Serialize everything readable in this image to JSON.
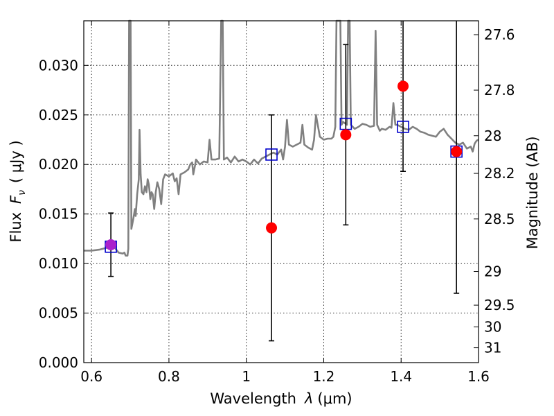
{
  "chart_data": {
    "type": "scatter",
    "title": "",
    "xlabel": "Wavelength",
    "xlabel_symbol": "λ",
    "xlabel_unit": "(μm)",
    "ylabel": "Flux",
    "ylabel_symbol": "F",
    "ylabel_subscript": "ν",
    "ylabel_unit": "( μJy )",
    "y2label": "Magnitude (AB)",
    "xlim": [
      0.58,
      1.6
    ],
    "ylim": [
      0.0,
      0.0345
    ],
    "grid": true,
    "x_ticks": [
      0.6,
      0.8,
      1.0,
      1.2,
      1.4,
      1.6
    ],
    "x_tick_labels": [
      "0.6",
      "0.8",
      "1",
      "1.2",
      "1.4",
      "1.6"
    ],
    "y_ticks": [
      0.0,
      0.005,
      0.01,
      0.015,
      0.02,
      0.025,
      0.03
    ],
    "y_tick_labels": [
      "0.000",
      "0.005",
      "0.010",
      "0.015",
      "0.020",
      "0.025",
      "0.030"
    ],
    "y2_ticks": [
      {
        "label": "27.6",
        "flux": 0.0331
      },
      {
        "label": "27.8",
        "flux": 0.0275
      },
      {
        "label": "28",
        "flux": 0.0229
      },
      {
        "label": "28.2",
        "flux": 0.0191
      },
      {
        "label": "28.5",
        "flux": 0.0145
      },
      {
        "label": "29",
        "flux": 0.0092
      },
      {
        "label": "29.5",
        "flux": 0.0058
      },
      {
        "label": "30",
        "flux": 0.0036
      },
      {
        "label": "31",
        "flux": 0.0015
      }
    ],
    "series": [
      {
        "kind": "line",
        "color": "#808080",
        "points": [
          [
            0.58,
            0.0113
          ],
          [
            0.6,
            0.0113
          ],
          [
            0.62,
            0.0114
          ],
          [
            0.64,
            0.0116
          ],
          [
            0.66,
            0.0116
          ],
          [
            0.67,
            0.0111
          ],
          [
            0.68,
            0.011
          ],
          [
            0.685,
            0.0111
          ],
          [
            0.688,
            0.0108
          ],
          [
            0.693,
            0.0108
          ],
          [
            0.695,
            0.0115
          ],
          [
            0.697,
            0.0345
          ],
          [
            0.701,
            0.0345
          ],
          [
            0.703,
            0.0135
          ],
          [
            0.708,
            0.0145
          ],
          [
            0.712,
            0.0155
          ],
          [
            0.714,
            0.0148
          ],
          [
            0.718,
            0.017
          ],
          [
            0.722,
            0.0185
          ],
          [
            0.724,
            0.0235
          ],
          [
            0.727,
            0.019
          ],
          [
            0.73,
            0.0172
          ],
          [
            0.734,
            0.017
          ],
          [
            0.738,
            0.0178
          ],
          [
            0.742,
            0.0172
          ],
          [
            0.745,
            0.0185
          ],
          [
            0.748,
            0.018
          ],
          [
            0.752,
            0.0165
          ],
          [
            0.755,
            0.0172
          ],
          [
            0.758,
            0.017
          ],
          [
            0.762,
            0.0155
          ],
          [
            0.766,
            0.0172
          ],
          [
            0.77,
            0.0182
          ],
          [
            0.775,
            0.0175
          ],
          [
            0.78,
            0.016
          ],
          [
            0.785,
            0.0185
          ],
          [
            0.79,
            0.019
          ],
          [
            0.8,
            0.0188
          ],
          [
            0.81,
            0.0191
          ],
          [
            0.815,
            0.0183
          ],
          [
            0.82,
            0.0186
          ],
          [
            0.825,
            0.017
          ],
          [
            0.83,
            0.019
          ],
          [
            0.84,
            0.0192
          ],
          [
            0.85,
            0.0195
          ],
          [
            0.855,
            0.02
          ],
          [
            0.86,
            0.0202
          ],
          [
            0.863,
            0.019
          ],
          [
            0.868,
            0.02
          ],
          [
            0.87,
            0.0205
          ],
          [
            0.88,
            0.02
          ],
          [
            0.89,
            0.0203
          ],
          [
            0.9,
            0.0202
          ],
          [
            0.905,
            0.0225
          ],
          [
            0.91,
            0.0205
          ],
          [
            0.92,
            0.0205
          ],
          [
            0.93,
            0.0206
          ],
          [
            0.935,
            0.0345
          ],
          [
            0.939,
            0.0345
          ],
          [
            0.942,
            0.0205
          ],
          [
            0.95,
            0.0207
          ],
          [
            0.96,
            0.0202
          ],
          [
            0.97,
            0.0208
          ],
          [
            0.98,
            0.0203
          ],
          [
            0.99,
            0.0205
          ],
          [
            1.0,
            0.0203
          ],
          [
            1.01,
            0.02
          ],
          [
            1.02,
            0.0205
          ],
          [
            1.03,
            0.0201
          ],
          [
            1.04,
            0.0206
          ],
          [
            1.05,
            0.0208
          ],
          [
            1.06,
            0.021
          ],
          [
            1.07,
            0.0212
          ],
          [
            1.08,
            0.021
          ],
          [
            1.09,
            0.0215
          ],
          [
            1.095,
            0.0205
          ],
          [
            1.1,
            0.0218
          ],
          [
            1.105,
            0.0245
          ],
          [
            1.11,
            0.022
          ],
          [
            1.12,
            0.0218
          ],
          [
            1.13,
            0.022
          ],
          [
            1.14,
            0.0222
          ],
          [
            1.145,
            0.024
          ],
          [
            1.15,
            0.022
          ],
          [
            1.16,
            0.0217
          ],
          [
            1.17,
            0.0215
          ],
          [
            1.175,
            0.0225
          ],
          [
            1.18,
            0.025
          ],
          [
            1.19,
            0.0228
          ],
          [
            1.2,
            0.0225
          ],
          [
            1.21,
            0.0226
          ],
          [
            1.22,
            0.0226
          ],
          [
            1.225,
            0.0228
          ],
          [
            1.23,
            0.0238
          ],
          [
            1.233,
            0.0345
          ],
          [
            1.243,
            0.0345
          ],
          [
            1.246,
            0.024
          ],
          [
            1.25,
            0.0243
          ],
          [
            1.26,
            0.024
          ],
          [
            1.263,
            0.0345
          ],
          [
            1.267,
            0.0345
          ],
          [
            1.27,
            0.024
          ],
          [
            1.28,
            0.0236
          ],
          [
            1.29,
            0.0238
          ],
          [
            1.3,
            0.0241
          ],
          [
            1.31,
            0.024
          ],
          [
            1.32,
            0.0238
          ],
          [
            1.33,
            0.0239
          ],
          [
            1.334,
            0.0335
          ],
          [
            1.338,
            0.024
          ],
          [
            1.345,
            0.0234
          ],
          [
            1.35,
            0.0236
          ],
          [
            1.36,
            0.0235
          ],
          [
            1.37,
            0.0238
          ],
          [
            1.375,
            0.0237
          ],
          [
            1.38,
            0.0262
          ],
          [
            1.385,
            0.024
          ],
          [
            1.39,
            0.024
          ],
          [
            1.4,
            0.0238
          ],
          [
            1.41,
            0.0236
          ],
          [
            1.42,
            0.0235
          ],
          [
            1.43,
            0.0238
          ],
          [
            1.44,
            0.0236
          ],
          [
            1.45,
            0.0233
          ],
          [
            1.46,
            0.0232
          ],
          [
            1.47,
            0.023
          ],
          [
            1.48,
            0.0229
          ],
          [
            1.49,
            0.0228
          ],
          [
            1.5,
            0.0233
          ],
          [
            1.51,
            0.0236
          ],
          [
            1.52,
            0.023
          ],
          [
            1.53,
            0.0226
          ],
          [
            1.54,
            0.0222
          ],
          [
            1.55,
            0.022
          ],
          [
            1.56,
            0.0222
          ],
          [
            1.57,
            0.0216
          ],
          [
            1.58,
            0.0218
          ],
          [
            1.585,
            0.0213
          ],
          [
            1.59,
            0.0221
          ],
          [
            1.595,
            0.0224
          ],
          [
            1.6,
            0.0225
          ]
        ]
      },
      {
        "kind": "open-square",
        "color": "#0000cc",
        "points": [
          [
            0.65,
            0.0117
          ],
          [
            1.065,
            0.021
          ],
          [
            1.257,
            0.0241
          ],
          [
            1.405,
            0.0238
          ],
          [
            1.543,
            0.0213
          ]
        ]
      },
      {
        "kind": "circle-with-errorbar",
        "color": "#ff0000",
        "errorbar_color": "#000000",
        "points": [
          {
            "x": 0.65,
            "y": 0.0119,
            "yerr_low": 0.0087,
            "yerr_high": 0.0151
          },
          {
            "x": 1.065,
            "y": 0.0136,
            "yerr_low": 0.0022,
            "yerr_high": 0.025
          },
          {
            "x": 1.257,
            "y": 0.023,
            "yerr_low": 0.0139,
            "yerr_high": 0.0321
          },
          {
            "x": 1.405,
            "y": 0.0279,
            "yerr_low": 0.0193,
            "yerr_high": 0.0345
          },
          {
            "x": 1.543,
            "y": 0.0213,
            "yerr_low": 0.007,
            "yerr_high": 0.0345
          }
        ]
      }
    ],
    "first_point_overlap_color": "#aa22cc"
  }
}
